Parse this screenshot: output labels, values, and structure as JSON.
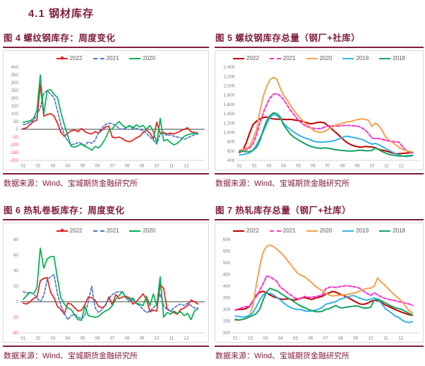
{
  "page": {
    "section_title": "4.1 钢材库存"
  },
  "theme": {
    "accent_maroon": "#811f3c",
    "tick_gray": "#7f7f7f",
    "negative_tick_red": "#f85050",
    "legend_text_gray": "#595959"
  },
  "chart_data": [
    {
      "type": "line",
      "figure_title": "图 4 螺纹钢库存：周度变化",
      "source": "数据来源：Wind、宝城期货金融研究所",
      "x_tick_labels": [
        "01",
        "02",
        "03",
        "04",
        "05",
        "06",
        "07",
        "08",
        "09",
        "10",
        "11",
        "12"
      ],
      "ylim": [
        -200,
        400
      ],
      "ytick_step": 50,
      "y_label_format": "plain",
      "negative_ticks_red": true,
      "zero_line": true,
      "grid": false,
      "legend_position": "top-center",
      "series": [
        {
          "name": "2022",
          "color": "#e8231f",
          "dash": null,
          "marker": true,
          "values": [
            5,
            10,
            30,
            50,
            60,
            285,
            85,
            95,
            100,
            85,
            40,
            -20,
            -45,
            -25,
            -10,
            -5,
            -15,
            5,
            -15,
            -25,
            -30,
            -15,
            -25,
            -5,
            15,
            20,
            -50,
            -55,
            -50,
            -60,
            -75,
            -80,
            -70,
            -55,
            -45,
            -20,
            -5,
            -25,
            -60,
            45,
            -25,
            -20,
            -30,
            -25,
            -30,
            -20,
            -10,
            0,
            10,
            -15,
            -20,
            -25
          ]
        },
        {
          "name": "2021",
          "color": "#4f76c7",
          "dash": "3.5 2.5",
          "marker": false,
          "values": [
            30,
            35,
            45,
            60,
            90,
            140,
            230,
            250,
            225,
            205,
            120,
            30,
            -35,
            -75,
            -100,
            -95,
            -85,
            -90,
            -105,
            -80,
            -90,
            -70,
            -20,
            10,
            30,
            40,
            35,
            25,
            5,
            0,
            10,
            20,
            15,
            5,
            0,
            -10,
            -25,
            -50,
            -70,
            -95,
            -30,
            -25,
            -40,
            -35,
            -45,
            -50,
            -55,
            -65,
            -55,
            -45,
            -35,
            -30
          ]
        },
        {
          "name": "2020",
          "color": "#00b052",
          "dash": null,
          "marker": false,
          "values": [
            45,
            50,
            55,
            70,
            120,
            350,
            95,
            250,
            255,
            225,
            205,
            110,
            30,
            -40,
            -110,
            -115,
            -105,
            -95,
            -110,
            -120,
            -135,
            -110,
            -120,
            -95,
            -60,
            -10,
            5,
            30,
            50,
            25,
            10,
            25,
            5,
            30,
            15,
            25,
            0,
            25,
            -15,
            -90,
            70,
            -75,
            -65,
            -85,
            -100,
            -90,
            -70,
            -45,
            -35,
            -30,
            -25,
            -25
          ]
        }
      ]
    },
    {
      "type": "line",
      "figure_title": "图 5 螺纹钢库存总量（钢厂+社库）",
      "source": "数据来源：Wind、宝城期货金融研究所",
      "x_tick_labels": [
        "01",
        "02",
        "03",
        "04",
        "05",
        "06",
        "07",
        "08",
        "09",
        "10",
        "11",
        "12"
      ],
      "ylim": [
        400,
        2400
      ],
      "ytick_step": 200,
      "y_label_format": "comma",
      "negative_ticks_red": false,
      "zero_line": false,
      "grid": false,
      "legend_position": "top-center",
      "series": [
        {
          "name": "2022",
          "color": "#c00000",
          "dash": null,
          "marker": false,
          "values": [
            570,
            620,
            780,
            990,
            1170,
            1240,
            1290,
            1320,
            1330,
            1305,
            1290,
            1283,
            1285,
            1280,
            1275,
            1280,
            1270,
            1258,
            1245,
            1225,
            1205,
            1185,
            1195,
            1215,
            1218,
            1205,
            1150,
            1090,
            1020,
            960,
            890,
            820,
            770,
            730,
            705,
            690,
            685,
            698,
            692,
            688,
            670,
            640,
            620,
            605,
            585,
            560,
            545,
            542,
            550,
            556,
            562,
            570
          ]
        },
        {
          "name": "2021",
          "color": "#ff33cc",
          "dash": "4.5 2.5",
          "marker": false,
          "values": [
            600,
            615,
            630,
            665,
            760,
            950,
            1200,
            1420,
            1600,
            1740,
            1820,
            1830,
            1780,
            1700,
            1590,
            1480,
            1390,
            1290,
            1220,
            1160,
            1120,
            1100,
            1085,
            1080,
            1085,
            1110,
            1140,
            1145,
            1140,
            1135,
            1145,
            1150,
            1150,
            1145,
            1140,
            1130,
            1100,
            1050,
            980,
            880,
            865,
            870,
            855,
            830,
            815,
            808,
            800,
            790,
            700,
            620,
            580,
            560
          ]
        },
        {
          "name": "2020",
          "color": "#f7a14f",
          "dash": null,
          "marker": false,
          "values": [
            620,
            635,
            660,
            700,
            860,
            1050,
            1450,
            1780,
            1980,
            2130,
            2180,
            2140,
            1950,
            1790,
            1700,
            1580,
            1480,
            1380,
            1300,
            1220,
            1160,
            1100,
            1030,
            1010,
            1000,
            1020,
            1060,
            1100,
            1150,
            1170,
            1190,
            1210,
            1230,
            1240,
            1260,
            1280,
            1290,
            1280,
            1260,
            1130,
            1200,
            1150,
            1050,
            900,
            840,
            790,
            740,
            680,
            640,
            615,
            595,
            580
          ]
        },
        {
          "name": "2019",
          "color": "#38b3e6",
          "dash": null,
          "marker": false,
          "values": [
            520,
            528,
            540,
            560,
            620,
            730,
            870,
            1020,
            1180,
            1320,
            1390,
            1360,
            1300,
            1190,
            1120,
            1060,
            1010,
            960,
            920,
            890,
            865,
            840,
            805,
            795,
            790,
            795,
            800,
            810,
            825,
            850,
            880,
            910,
            915,
            900,
            885,
            870,
            850,
            820,
            780,
            750,
            762,
            740,
            700,
            655,
            620,
            580,
            545,
            515,
            495,
            482,
            488,
            500
          ]
        },
        {
          "name": "2018",
          "color": "#12a563",
          "dash": null,
          "marker": false,
          "values": [
            600,
            592,
            586,
            590,
            615,
            680,
            820,
            1050,
            1250,
            1360,
            1420,
            1405,
            1330,
            1160,
            1060,
            960,
            900,
            855,
            810,
            770,
            730,
            700,
            680,
            665,
            658,
            668,
            662,
            648,
            632,
            622,
            614,
            608,
            602,
            598,
            605,
            615,
            618,
            608,
            606,
            612,
            660,
            635,
            590,
            558,
            530,
            515,
            505,
            496,
            492,
            495,
            502,
            510
          ]
        }
      ]
    },
    {
      "type": "line",
      "figure_title": "图 6 热轧卷板库存：周度变化",
      "source": "数据来源：Wind、宝城期货金融研究所",
      "x_tick_labels": [
        "01",
        "02",
        "03",
        "04",
        "05",
        "06",
        "07",
        "08",
        "09",
        "10",
        "11",
        "12"
      ],
      "ylim": [
        -40,
        80
      ],
      "ytick_step": 20,
      "y_label_format": "plain",
      "negative_ticks_red": true,
      "zero_line": true,
      "grid": false,
      "legend_position": "top-center",
      "series": [
        {
          "name": "2022",
          "color": "#e8231f",
          "dash": null,
          "marker": true,
          "values": [
            -2,
            -3,
            0,
            4,
            6,
            27,
            30,
            31,
            12,
            5,
            -6,
            -10,
            -16,
            -2,
            -3,
            -8,
            -12,
            -11,
            -4,
            6,
            5,
            2,
            -6,
            -8,
            -5,
            6,
            -4,
            9,
            4,
            6,
            7,
            5,
            -3,
            0,
            5,
            10,
            3,
            -13,
            -11,
            -12,
            22,
            17,
            -9,
            -12,
            -14,
            -16,
            -10,
            -8,
            -5,
            2,
            0,
            -3
          ]
        },
        {
          "name": "2021",
          "color": "#4f76c7",
          "dash": "3.5 2.5",
          "marker": false,
          "values": [
            13,
            11,
            12,
            10,
            5,
            0,
            8,
            28,
            32,
            35,
            10,
            -5,
            -15,
            -23,
            -18,
            -16,
            -20,
            -22,
            -18,
            0,
            20,
            -8,
            -14,
            -10,
            -4,
            4,
            9,
            12,
            13,
            12,
            5,
            0,
            3,
            -3,
            -5,
            -10,
            -14,
            -12,
            -8,
            -3,
            10,
            -5,
            -10,
            -12,
            -8,
            -5,
            -3,
            -5,
            -2,
            -5,
            -8,
            -8
          ]
        },
        {
          "name": "2020",
          "color": "#00b052",
          "dash": null,
          "marker": false,
          "values": [
            3,
            8,
            12,
            10,
            18,
            69,
            43,
            55,
            58,
            58,
            30,
            5,
            -3,
            -8,
            -10,
            -17,
            -23,
            -24,
            -6,
            -18,
            -19,
            -20,
            -19,
            -15,
            -12,
            -10,
            -5,
            3,
            8,
            13,
            5,
            3,
            5,
            -2,
            -3,
            -5,
            7,
            -5,
            10,
            -5,
            32,
            -20,
            -14,
            -16,
            -12,
            -15,
            -13,
            -18,
            -15,
            -23,
            -12,
            -9
          ]
        }
      ]
    },
    {
      "type": "line",
      "figure_title": "图 7 热轧库存总量（钢厂+社库）",
      "source": "数据来源：Wind、宝城期货金融研究所",
      "x_tick_labels": [
        "01",
        "02",
        "03",
        "04",
        "05",
        "06",
        "07",
        "08",
        "09",
        "10",
        "11",
        "12"
      ],
      "ylim": [
        200,
        600
      ],
      "ytick_step": 50,
      "y_label_format": "plain",
      "negative_ticks_red": false,
      "zero_line": false,
      "grid": false,
      "legend_position": "top-center",
      "series": [
        {
          "name": "2022",
          "color": "#c00000",
          "dash": null,
          "marker": false,
          "values": [
            298,
            300,
            301,
            303,
            312,
            335,
            360,
            374,
            378,
            372,
            362,
            355,
            350,
            345,
            343,
            346,
            343,
            340,
            344,
            349,
            351,
            347,
            343,
            348,
            352,
            356,
            366,
            371,
            377,
            374,
            367,
            361,
            354,
            347,
            338,
            330,
            323,
            322,
            326,
            334,
            340,
            337,
            331,
            321,
            314,
            307,
            300,
            294,
            288,
            283,
            278,
            275
          ]
        },
        {
          "name": "2021",
          "color": "#ff33cc",
          "dash": "4.5 2.5",
          "marker": false,
          "values": [
            298,
            303,
            308,
            312,
            312,
            335,
            355,
            380,
            410,
            443,
            440,
            430,
            420,
            395,
            385,
            372,
            362,
            350,
            346,
            348,
            356,
            352,
            352,
            355,
            358,
            362,
            388,
            395,
            397,
            394,
            398,
            400,
            402,
            400,
            398,
            395,
            390,
            378,
            368,
            360,
            372,
            362,
            355,
            348,
            344,
            341,
            338,
            334,
            330,
            328,
            324,
            318
          ]
        },
        {
          "name": "2020",
          "color": "#f7a14f",
          "dash": null,
          "marker": false,
          "values": [
            253,
            255,
            257,
            260,
            270,
            310,
            400,
            480,
            545,
            570,
            576,
            570,
            558,
            545,
            530,
            510,
            492,
            472,
            455,
            446,
            440,
            428,
            415,
            400,
            390,
            380,
            370,
            362,
            358,
            360,
            361,
            362,
            364,
            367,
            370,
            374,
            380,
            386,
            390,
            392,
            400,
            435,
            418,
            405,
            390,
            375,
            360,
            348,
            335,
            315,
            295,
            285
          ]
        },
        {
          "name": "2019",
          "color": "#38b3e6",
          "dash": null,
          "marker": false,
          "values": [
            272,
            270,
            268,
            269,
            274,
            285,
            310,
            340,
            362,
            372,
            369,
            363,
            352,
            340,
            327,
            316,
            308,
            302,
            300,
            299,
            294,
            292,
            294,
            297,
            301,
            308,
            322,
            326,
            330,
            334,
            343,
            348,
            352,
            357,
            360,
            354,
            348,
            343,
            340,
            344,
            350,
            342,
            328,
            308,
            295,
            285,
            272,
            266,
            255,
            247,
            244,
            248
          ]
        },
        {
          "name": "2018",
          "color": "#12a563",
          "dash": null,
          "marker": false,
          "values": [
            258,
            255,
            257,
            262,
            268,
            274,
            282,
            300,
            340,
            375,
            391,
            385,
            380,
            370,
            360,
            350,
            342,
            332,
            322,
            314,
            308,
            300,
            295,
            291,
            290,
            292,
            300,
            304,
            310,
            317,
            308,
            307,
            310,
            312,
            314,
            316,
            311,
            306,
            306,
            310,
            340,
            345,
            338,
            330,
            322,
            314,
            308,
            304,
            300,
            292,
            284,
            276
          ]
        }
      ]
    }
  ]
}
